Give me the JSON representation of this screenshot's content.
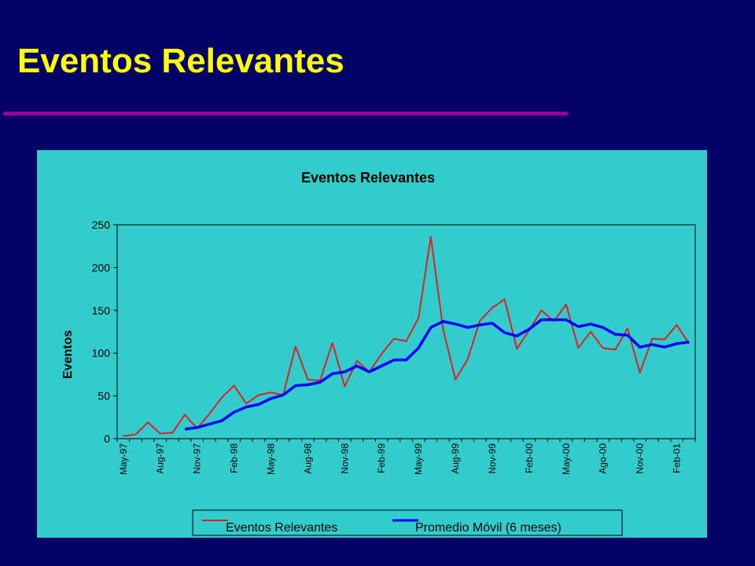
{
  "slide": {
    "title": "Eventos Relevantes"
  },
  "colors": {
    "background": "#000066",
    "title": "#ffff00",
    "rule": "#990099",
    "chart_panel": "#33cccc",
    "series_events": "#dd2222",
    "series_moving_avg": "#0000ff"
  },
  "chart_data": {
    "type": "line",
    "title": "Eventos Relevantes",
    "xlabel": "",
    "ylabel": "Eventos",
    "ylim": [
      0,
      250
    ],
    "yticks": [
      0,
      50,
      100,
      150,
      200,
      250
    ],
    "grid": false,
    "legend_position": "bottom",
    "x": [
      "May-97",
      "Jun-97",
      "Jul-97",
      "Aug-97",
      "Sep-97",
      "Oct-97",
      "Nov-97",
      "Dec-97",
      "Jan-98",
      "Feb-98",
      "Mar-98",
      "Apr-98",
      "May-98",
      "Jun-98",
      "Jul-98",
      "Aug-98",
      "Sep-98",
      "Oct-98",
      "Nov-98",
      "Dec-98",
      "Jan-99",
      "Feb-99",
      "Mar-99",
      "Apr-99",
      "May-99",
      "Jun-99",
      "Jul-99",
      "Aug-99",
      "Sep-99",
      "Oct-99",
      "Nov-99",
      "Dec-99",
      "Jan-00",
      "Feb-00",
      "Mar-00",
      "Apr-00",
      "May-00",
      "Jun-00",
      "Jul-00",
      "Ago-00",
      "Sep-00",
      "Oct-00",
      "Nov-00",
      "Dec-00",
      "Jan-01",
      "Feb-01",
      "Mar-01"
    ],
    "xtick_labels": [
      "May-97",
      "Aug-97",
      "Nov-97",
      "Feb-98",
      "May-98",
      "Aug-98",
      "Nov-98",
      "Feb-99",
      "May-99",
      "Aug-99",
      "Nov-99",
      "Feb-00",
      "May-00",
      "Ago-00",
      "Nov-00",
      "Feb-01"
    ],
    "series": [
      {
        "name": "Eventos Relevantes",
        "color": "#dd2222",
        "values": [
          3,
          5,
          19,
          6,
          7,
          28,
          12,
          29,
          48,
          62,
          41,
          51,
          54,
          51,
          108,
          69,
          68,
          112,
          61,
          91,
          78,
          99,
          117,
          114,
          141,
          236,
          128,
          69,
          93,
          138,
          153,
          163,
          105,
          127,
          150,
          137,
          157,
          106,
          125,
          106,
          104,
          129,
          77,
          117,
          116,
          133,
          111
        ]
      },
      {
        "name": "Promedio Móvil (6 meses)",
        "color": "#0000ff",
        "values": [
          null,
          null,
          null,
          null,
          null,
          11,
          13,
          17,
          21,
          31,
          37,
          40,
          47,
          51,
          62,
          63,
          66,
          76,
          78,
          85,
          78,
          85,
          92,
          92,
          106,
          130,
          137,
          134,
          130,
          133,
          135,
          124,
          120,
          128,
          139,
          139,
          139,
          131,
          134,
          130,
          122,
          121,
          107,
          110,
          107,
          111,
          113
        ]
      }
    ]
  }
}
